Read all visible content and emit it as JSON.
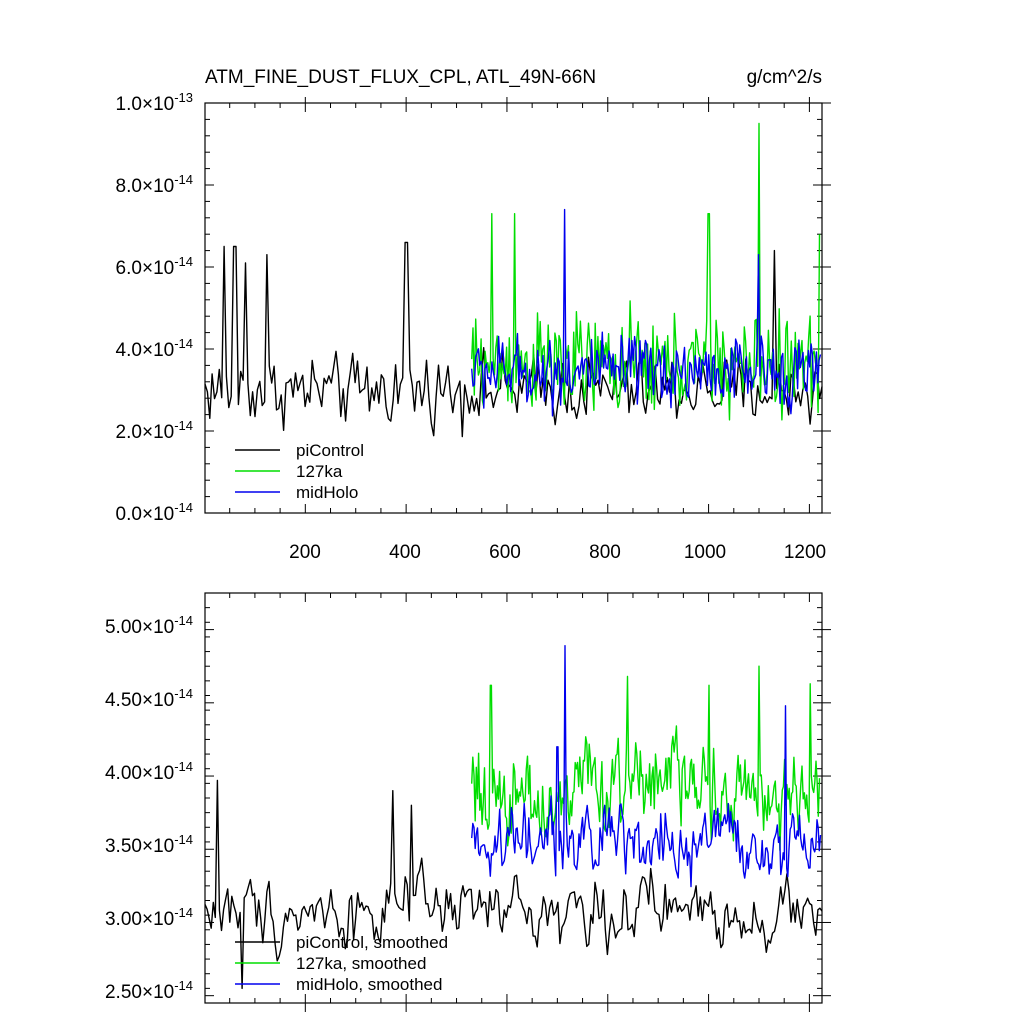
{
  "chart_data": [
    {
      "type": "line",
      "title": "ATM_FINE_DUST_FLUX_CPL, ATL_49N-66N",
      "units": "g/cm^2/s",
      "xlabel": "",
      "ylabel": "",
      "xlim": [
        1,
        1225
      ],
      "ylim": [
        0.0,
        1e-13
      ],
      "x_ticks": [
        200,
        400,
        600,
        800,
        1000,
        1200
      ],
      "y_ticks": [
        {
          "mantissa": "0.0",
          "exponent": "-14"
        },
        {
          "mantissa": "2.0",
          "exponent": "-14"
        },
        {
          "mantissa": "4.0",
          "exponent": "-14"
        },
        {
          "mantissa": "6.0",
          "exponent": "-14"
        },
        {
          "mantissa": "8.0",
          "exponent": "-14"
        },
        {
          "mantissa": "1.0",
          "exponent": "-13"
        }
      ],
      "y_tick_values": [
        0,
        2e-14,
        4e-14,
        6e-14,
        8e-14,
        1e-13
      ],
      "legend_position": "bottom-left",
      "series": [
        {
          "name": "piControl",
          "color": "#000000",
          "x_range": [
            1,
            1225
          ],
          "mean": 3e-14,
          "std": 4.2e-15,
          "spikes": [
            [
              40,
              6.5e-14
            ],
            [
              60,
              6.5e-14
            ],
            [
              80,
              6.1e-14
            ],
            [
              122,
              6.3e-14
            ],
            [
              400,
              6.6e-14
            ],
            [
              1130,
              6.4e-14
            ]
          ]
        },
        {
          "name": "127ka",
          "color": "#00dd00",
          "x_range": [
            530,
            1220
          ],
          "mean": 3.6e-14,
          "std": 6e-15,
          "spikes": [
            [
              570,
              7.3e-14
            ],
            [
              615,
              7.3e-14
            ],
            [
              1000,
              7.3e-14
            ],
            [
              1100,
              9.5e-14
            ],
            [
              1220,
              6.8e-14
            ]
          ]
        },
        {
          "name": "midHolo",
          "color": "#0000ee",
          "x_range": [
            530,
            1222
          ],
          "mean": 3.45e-14,
          "std": 4.2e-15,
          "spikes": [
            [
              715,
              7.4e-14
            ],
            [
              1100,
              6.3e-14
            ]
          ]
        }
      ]
    },
    {
      "type": "line",
      "title": "",
      "xlim": [
        1,
        1225
      ],
      "ylim": [
        2.45e-14,
        5.25e-14
      ],
      "y_ticks": [
        {
          "mantissa": "2.50",
          "exponent": "-14"
        },
        {
          "mantissa": "3.00",
          "exponent": "-14"
        },
        {
          "mantissa": "3.50",
          "exponent": "-14"
        },
        {
          "mantissa": "4.00",
          "exponent": "-14"
        },
        {
          "mantissa": "4.50",
          "exponent": "-14"
        },
        {
          "mantissa": "5.00",
          "exponent": "-14"
        }
      ],
      "y_tick_values": [
        2.5e-14,
        3e-14,
        3.5e-14,
        4e-14,
        4.5e-14,
        5e-14
      ],
      "legend_position": "bottom-left",
      "series": [
        {
          "name": "piControl, smoothed",
          "color": "#000000",
          "x_range": [
            1,
            1225
          ],
          "mean": 3.08e-14,
          "std": 2.2e-15,
          "spikes": [
            [
              25,
              3.97e-14
            ],
            [
              375,
              3.9e-14
            ],
            [
              410,
              3.8e-14
            ],
            [
              75,
              2.55e-14
            ]
          ]
        },
        {
          "name": "127ka, smoothed",
          "color": "#00dd00",
          "x_range": [
            530,
            1220
          ],
          "mean": 3.9e-14,
          "std": 3e-15,
          "spikes": [
            [
              568,
              4.62e-14
            ],
            [
              840,
              4.68e-14
            ],
            [
              1000,
              4.62e-14
            ],
            [
              1100,
              4.75e-14
            ],
            [
              1202,
              4.63e-14
            ]
          ]
        },
        {
          "name": "midHolo, smoothed",
          "color": "#0000ee",
          "x_range": [
            530,
            1222
          ],
          "mean": 3.55e-14,
          "std": 2.2e-15,
          "spikes": [
            [
              715,
              4.89e-14
            ],
            [
              700,
              4.2e-14
            ],
            [
              1152,
              4.48e-14
            ]
          ]
        }
      ]
    }
  ]
}
